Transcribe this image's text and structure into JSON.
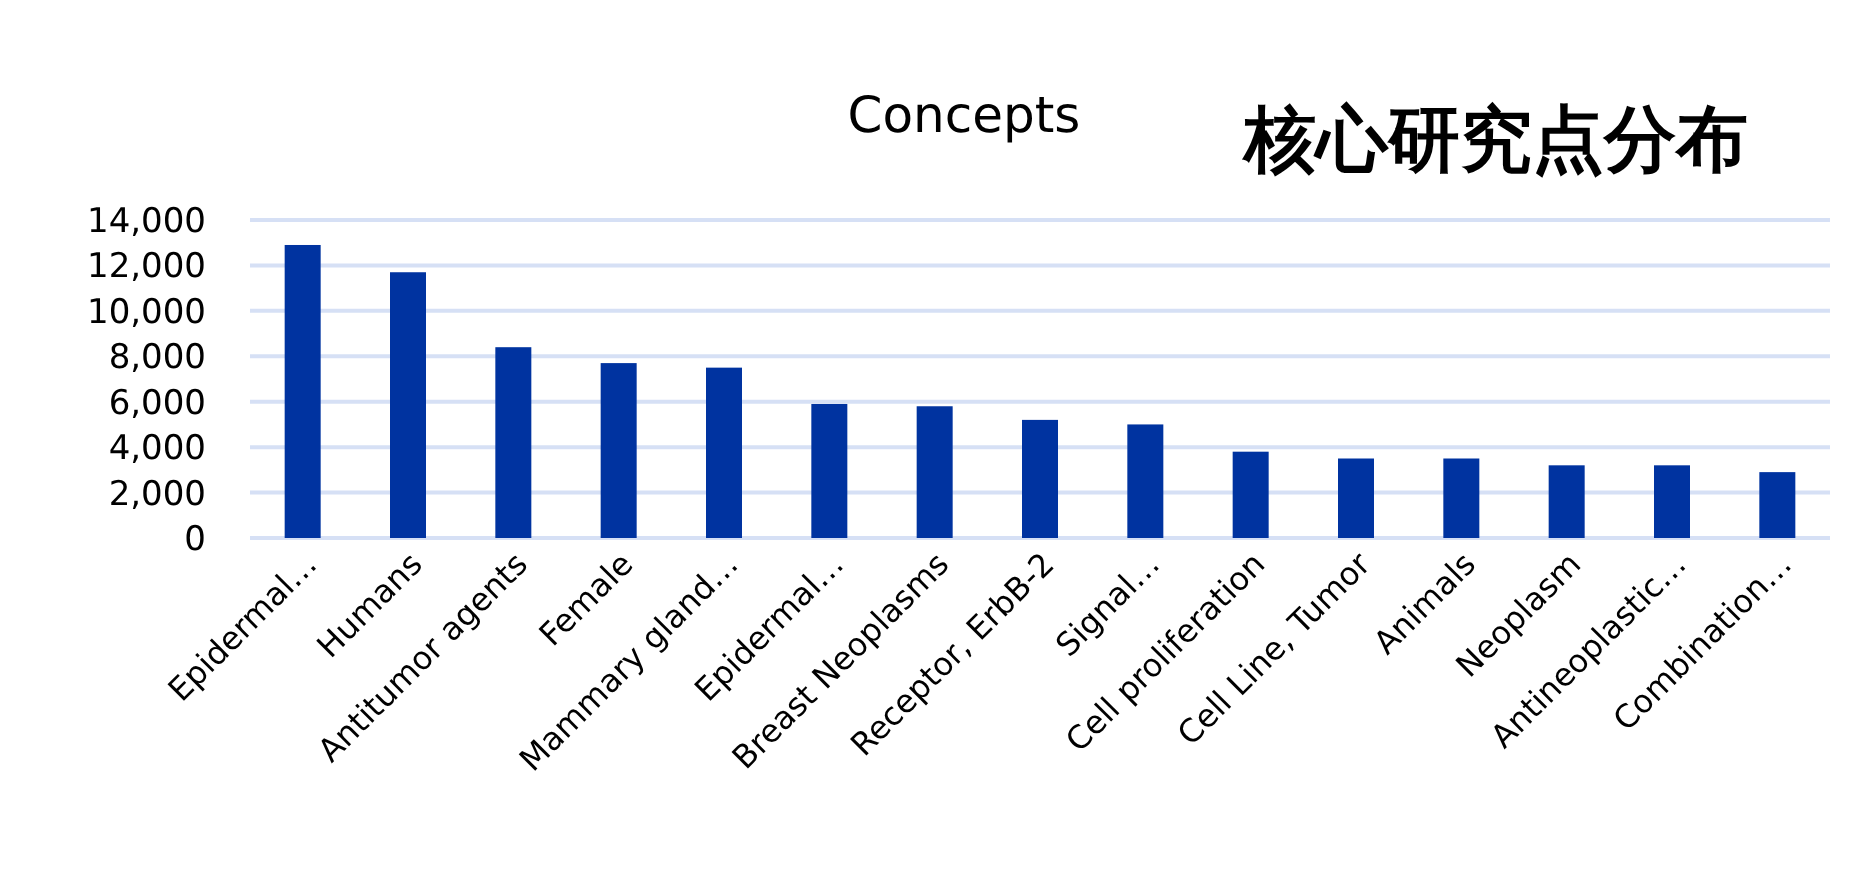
{
  "chart_data": {
    "type": "bar",
    "title": "Concepts",
    "subtitle": "核心研究点分布",
    "categories": [
      "Epidermal…",
      "Humans",
      "Antitumor agents",
      "Female",
      "Mammary gland…",
      "Epidermal…",
      "Breast Neoplasms",
      "Receptor, ErbB-2",
      "Signal…",
      "Cell proliferation",
      "Cell Line, Tumor",
      "Animals",
      "Neoplasm",
      "Antineoplastic…",
      "Combination…"
    ],
    "values": [
      12900,
      11700,
      8400,
      7700,
      7500,
      5900,
      5800,
      5200,
      5000,
      3800,
      3500,
      3500,
      3200,
      3200,
      2900
    ],
    "color": "#0033a0",
    "ylim": [
      0,
      14000
    ],
    "yticks": [
      {
        "value": 0,
        "label": "0"
      },
      {
        "value": 2000,
        "label": "2,000"
      },
      {
        "value": 4000,
        "label": "4,000"
      },
      {
        "value": 6000,
        "label": "6,000"
      },
      {
        "value": 8000,
        "label": "8,000"
      },
      {
        "value": 10000,
        "label": "10,000"
      },
      {
        "value": 12000,
        "label": "12,000"
      },
      {
        "value": 14000,
        "label": "14,000"
      }
    ],
    "grid": "y"
  }
}
